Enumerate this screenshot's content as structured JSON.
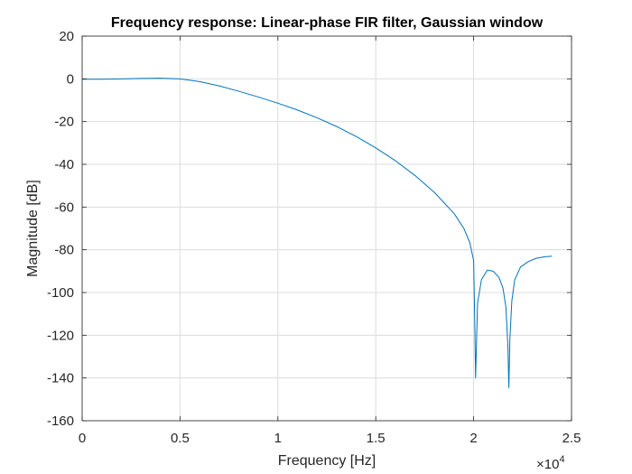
{
  "chart_data": {
    "type": "line",
    "title": "Frequency response: Linear-phase FIR filter, Gaussian window",
    "xlabel": "Frequency [Hz]",
    "ylabel": "Magnitude [dB]",
    "xlim": [
      0,
      25000
    ],
    "ylim": [
      -160,
      20
    ],
    "x_ticks": [
      0,
      5000,
      10000,
      15000,
      20000,
      25000
    ],
    "x_tick_labels": [
      "0",
      "0.5",
      "1",
      "1.5",
      "2",
      "2.5"
    ],
    "x_exponent_label": "×10",
    "x_exponent_power": "4",
    "y_ticks": [
      20,
      0,
      -20,
      -40,
      -60,
      -80,
      -100,
      -120,
      -140,
      -160
    ],
    "y_tick_labels": [
      "20",
      "0",
      "-20",
      "-40",
      "-60",
      "-80",
      "-100",
      "-120",
      "-140",
      "-160"
    ],
    "grid": true,
    "line_color": "#0072BD",
    "series": [
      {
        "x": [
          0,
          1000,
          2000,
          3000,
          4000,
          5000,
          6000,
          7000,
          8000,
          9000,
          10000,
          11000,
          12000,
          13000,
          14000,
          15000,
          16000,
          17000,
          18000,
          19000,
          19500,
          19800,
          20000,
          20050,
          20100,
          20200,
          20400,
          20700,
          21000,
          21300,
          21500,
          21650,
          21750,
          21800,
          21850,
          21950,
          22100,
          22400,
          22800,
          23200,
          23600,
          24000
        ],
        "y": [
          -0.2,
          -0.2,
          0,
          0.2,
          0.3,
          0,
          -1.3,
          -3.3,
          -5.8,
          -8.5,
          -11.4,
          -14.6,
          -18.2,
          -22.3,
          -27,
          -32.3,
          -38.3,
          -45.2,
          -53.2,
          -63,
          -70,
          -76.5,
          -85,
          -110,
          -140,
          -105,
          -94,
          -89.5,
          -90,
          -93,
          -98,
          -107,
          -125,
          -144.5,
          -122,
          -104,
          -94,
          -88,
          -85.5,
          -84,
          -83.3,
          -83
        ]
      }
    ]
  }
}
